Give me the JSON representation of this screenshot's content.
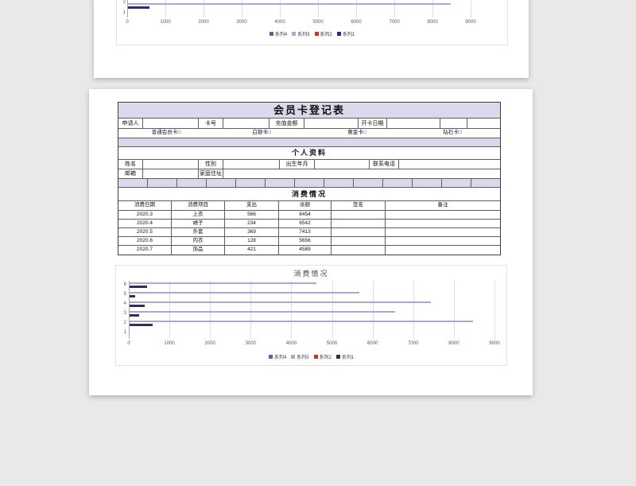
{
  "background": "#e9e9e9",
  "colors": {
    "page": "#ffffff",
    "lavender_fill": "#dcd7ea",
    "table_border": "#5f5f5f",
    "bar_light": "#b3a5d3",
    "bar_dark": "#332a66",
    "axis_text": "#595959"
  },
  "form": {
    "title": "会员卡登记表",
    "row_fields": {
      "applicant": "申请人",
      "card_no": "卡号",
      "recharge": "充值金额",
      "open_date": "开卡日期"
    },
    "card_types": [
      "普通会员卡□",
      "白银卡□",
      "黄金卡□",
      "钻石卡□"
    ],
    "personal": {
      "section_title": "个人资料",
      "name": "姓名",
      "gender": "性别",
      "birth": "出生年月",
      "phone": "联系电话",
      "email": "邮箱",
      "address": "家庭住址"
    },
    "consumption": {
      "section_title": "消费情况",
      "headers": [
        "消费日期",
        "消费项目",
        "支出",
        "余额",
        "签名",
        "备注"
      ],
      "rows": [
        [
          "2020.3",
          "上衣",
          "566",
          "8454",
          "",
          ""
        ],
        [
          "2020.4",
          "裙子",
          "234",
          "6542",
          "",
          ""
        ],
        [
          "2020.5",
          "外套",
          "369",
          "7413",
          "",
          ""
        ],
        [
          "2020.6",
          "内衣",
          "128",
          "5656",
          "",
          ""
        ],
        [
          "2020.7",
          "饰品",
          "421",
          "4589",
          "",
          ""
        ]
      ]
    }
  },
  "chart_data": {
    "type": "bar",
    "orientation": "horizontal",
    "title": "消费情况",
    "categories": [
      1,
      2,
      3,
      4,
      5,
      6
    ],
    "series": [
      {
        "name": "系列4",
        "color": "#6a5aa0",
        "values": [
          null,
          null,
          null,
          null,
          null,
          null
        ]
      },
      {
        "name": "系列3",
        "color": "#b3a5d3",
        "values": [
          null,
          8454,
          6542,
          7413,
          5656,
          4589
        ]
      },
      {
        "name": "系列2",
        "color": "#c2362e",
        "values": [
          null,
          null,
          null,
          null,
          null,
          null
        ]
      },
      {
        "name": "系列1",
        "color": "#332a66",
        "values": [
          null,
          566,
          234,
          369,
          128,
          421
        ]
      }
    ],
    "xlim": [
      0,
      9000
    ],
    "x_ticks": [
      0,
      1000,
      2000,
      3000,
      4000,
      5000,
      6000,
      7000,
      8000,
      9000
    ],
    "grid": true,
    "legend_position": "bottom",
    "note_top_page_shows_same_chart_cropped": true
  }
}
